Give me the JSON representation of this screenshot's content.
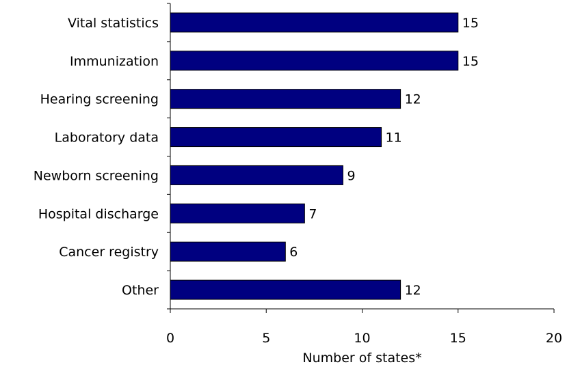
{
  "chart_data": {
    "type": "bar",
    "orientation": "horizontal",
    "title": "",
    "xlabel": "Number of states*",
    "ylabel": "",
    "categories": [
      "Vital statistics",
      "Immunization",
      "Hearing screening",
      "Laboratory data",
      "Newborn screening",
      "Hospital discharge",
      "Cancer registry",
      "Other"
    ],
    "values": [
      15,
      15,
      12,
      11,
      9,
      7,
      6,
      12
    ],
    "xlim": [
      0,
      20
    ],
    "xticks": [
      0,
      5,
      10,
      15,
      20
    ],
    "xtick_labels": [
      "0",
      "5",
      "10",
      "15",
      "20"
    ],
    "grid": false,
    "legend": "none",
    "bar_color": "#000080"
  }
}
